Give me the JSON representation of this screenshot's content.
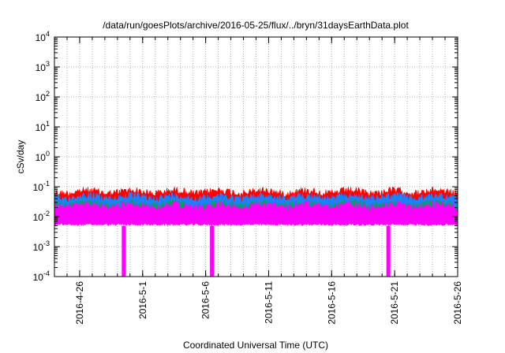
{
  "chart_data": {
    "type": "area",
    "title": "/data/run/goesPlots/archive/2016-05-25/flux/../bryn/31daysEarthData.plot",
    "xlabel": "Coordinated Universal Time (UTC)",
    "ylabel": "cSv/day",
    "y_scale": "log",
    "ylim": [
      0.0001,
      10000
    ],
    "xlim": [
      "2016-04-24",
      "2016-05-26"
    ],
    "grid": true,
    "x_ticks": [
      "2016-4-26",
      "2016-5-1",
      "2016-5-6",
      "2016-5-11",
      "2016-5-16",
      "2016-5-21",
      "2016-5-26"
    ],
    "y_ticks": [
      {
        "base": "10",
        "exp": "-4"
      },
      {
        "base": "10",
        "exp": "-3"
      },
      {
        "base": "10",
        "exp": "-2"
      },
      {
        "base": "10",
        "exp": "-1"
      },
      {
        "base": "10",
        "exp": "0"
      },
      {
        "base": "10",
        "exp": "1"
      },
      {
        "base": "10",
        "exp": "2"
      },
      {
        "base": "10",
        "exp": "3"
      },
      {
        "base": "10",
        "exp": "4"
      }
    ],
    "series": [
      {
        "color": "#ff0000",
        "typical_min": 0.006,
        "typical_max": 0.09
      },
      {
        "color": "#1e7fff",
        "typical_min": 0.006,
        "typical_max": 0.06
      },
      {
        "color": "#00a060",
        "typical_min": 0.006,
        "typical_max": 0.035
      },
      {
        "color": "#ff00ff",
        "typical_min": 0.005,
        "typical_max": 0.03
      }
    ],
    "dropouts": [
      {
        "series_color": "#ff00ff",
        "date": "2016-04-29",
        "value": 0.0001
      },
      {
        "series_color": "#ff00ff",
        "date": "2016-05-06",
        "value": 0.0001
      },
      {
        "series_color": "#ff00ff",
        "date": "2016-05-20",
        "value": 0.0001
      }
    ]
  }
}
